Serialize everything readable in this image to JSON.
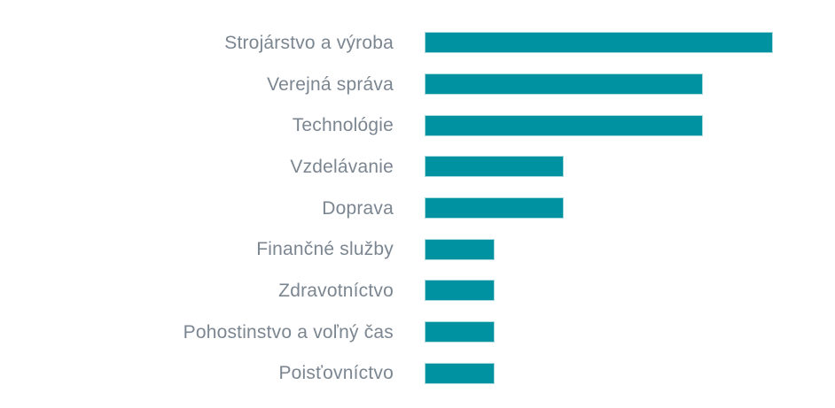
{
  "chart_data": {
    "type": "bar",
    "orientation": "horizontal",
    "title": "",
    "xlabel": "",
    "ylabel": "",
    "categories": [
      "Strojárstvo a výroba",
      "Verejná správa",
      "Technológie",
      "Vzdelávanie",
      "Doprava",
      "Finančné služby",
      "Zdravotníctvo",
      "Pohostinstvo a voľný čas",
      "Poisťovníctvo"
    ],
    "values": [
      5,
      4,
      4,
      2,
      2,
      1,
      1,
      1,
      1
    ],
    "xlim": [
      0,
      5
    ],
    "grid": false,
    "legend": false,
    "axes_visible": false,
    "colors": {
      "bar_fill": "#0092a0",
      "bar_border": "#a9dade",
      "label_text": "#7b8691",
      "background": "#ffffff"
    }
  }
}
